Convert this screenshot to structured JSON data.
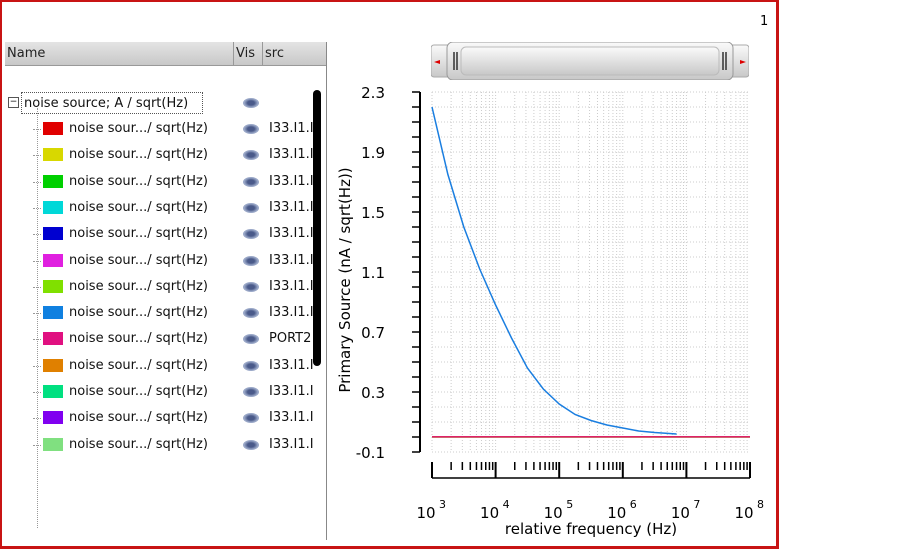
{
  "page_number": "1",
  "panel": {
    "columns": [
      "Name",
      "Vis",
      "src"
    ],
    "group": {
      "label": "noise source; A / sqrt(Hz)"
    },
    "rows": [
      {
        "label": "noise sour.../ sqrt(Hz)",
        "color": "#e00000",
        "src": "I33.I1.I"
      },
      {
        "label": "noise sour.../ sqrt(Hz)",
        "color": "#d8d800",
        "src": "I33.I1.I"
      },
      {
        "label": "noise sour.../ sqrt(Hz)",
        "color": "#00d000",
        "src": "I33.I1.I"
      },
      {
        "label": "noise sour.../ sqrt(Hz)",
        "color": "#00d8d8",
        "src": "I33.I1.I"
      },
      {
        "label": "noise sour.../ sqrt(Hz)",
        "color": "#0000d0",
        "src": "I33.I1.I"
      },
      {
        "label": "noise sour.../ sqrt(Hz)",
        "color": "#e020e0",
        "src": "I33.I1.I"
      },
      {
        "label": "noise sour.../ sqrt(Hz)",
        "color": "#80e000",
        "src": "I33.I1.I"
      },
      {
        "label": "noise sour.../ sqrt(Hz)",
        "color": "#1080e0",
        "src": "I33.I1.I"
      },
      {
        "label": "noise sour.../ sqrt(Hz)",
        "color": "#e01080",
        "src": "PORT2"
      },
      {
        "label": "noise sour.../ sqrt(Hz)",
        "color": "#e08000",
        "src": "I33.I1.I"
      },
      {
        "label": "noise sour.../ sqrt(Hz)",
        "color": "#00e080",
        "src": "I33.I1.I"
      },
      {
        "label": "noise sour.../ sqrt(Hz)",
        "color": "#8000f0",
        "src": "I33.I1.I"
      },
      {
        "label": "noise sour.../ sqrt(Hz)",
        "color": "#80e080",
        "src": "I33.I1.I"
      }
    ]
  },
  "chart_data": {
    "type": "line",
    "xlabel": "relative frequency (Hz)",
    "ylabel": "Primary Source (nA / sqrt(Hz))",
    "xscale": "log",
    "xlim": [
      1000,
      100000000
    ],
    "ylim": [
      -0.1,
      2.3
    ],
    "yticks": [
      "2.3",
      "1.9",
      "1.5",
      "1.1",
      "0.7",
      "0.3",
      "-0.1"
    ],
    "xticks": [
      {
        "base": "10",
        "exp": "3"
      },
      {
        "base": "10",
        "exp": "4"
      },
      {
        "base": "10",
        "exp": "5"
      },
      {
        "base": "10",
        "exp": "6"
      },
      {
        "base": "10",
        "exp": "7"
      },
      {
        "base": "10",
        "exp": "8"
      }
    ],
    "grid": true,
    "series": [
      {
        "name": "blue",
        "color": "#1a7ee0",
        "x": [
          1000,
          1778,
          3162,
          5623,
          10000,
          17783,
          31623,
          56234,
          100000,
          177828,
          316228,
          562341,
          1000000,
          1778279,
          3162278,
          7000000
        ],
        "y": [
          2.2,
          1.75,
          1.4,
          1.12,
          0.88,
          0.66,
          0.46,
          0.32,
          0.22,
          0.15,
          0.11,
          0.08,
          0.06,
          0.04,
          0.03,
          0.02
        ]
      },
      {
        "name": "olive",
        "color": "#b8b070",
        "x": [
          1000,
          100000000
        ],
        "y": [
          -0.002,
          -0.002
        ]
      },
      {
        "name": "magenta",
        "color": "#e0206a",
        "x": [
          1000,
          100000000
        ],
        "y": [
          0.002,
          0.002
        ]
      }
    ]
  }
}
